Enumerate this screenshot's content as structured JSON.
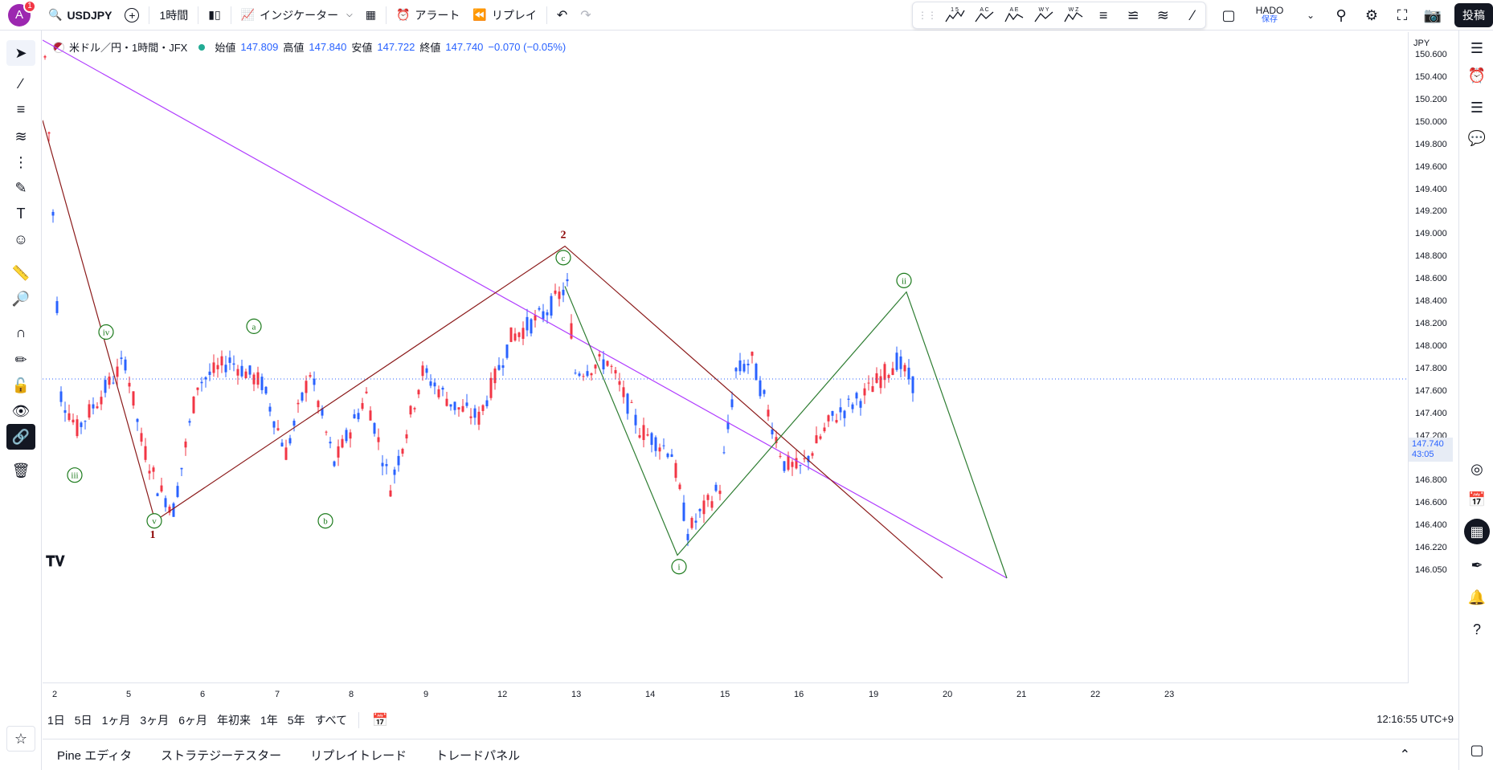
{
  "topbar": {
    "avatar_letter": "A",
    "notif_count": "1",
    "symbol": "USDJPY",
    "add_symbol": "+",
    "interval": "1時間",
    "indicators": "インジケーター",
    "alert": "アラート",
    "replay": "リプレイ",
    "undo": "↶",
    "redo": "↷",
    "layout_name": "HADO",
    "layout_sub": "保存",
    "post": "投稿",
    "elliott_tools": [
      "1 5",
      "A C",
      "A E",
      "W Y",
      "W Z"
    ]
  },
  "legend": {
    "title": "米ドル／円・1時間・JFX",
    "open_label": "始値",
    "open": "147.809",
    "high_label": "高値",
    "high": "147.840",
    "low_label": "安値",
    "low": "147.722",
    "close_label": "終値",
    "close": "147.740",
    "change": "−0.070 (−0.05%)"
  },
  "price_scale": {
    "currency": "JPY",
    "ticks": [
      "150.600",
      "150.400",
      "150.200",
      "150.000",
      "149.800",
      "149.600",
      "149.400",
      "149.200",
      "149.000",
      "148.800",
      "148.600",
      "148.400",
      "148.200",
      "148.000",
      "147.800",
      "147.600",
      "147.400",
      "147.200",
      "147.000",
      "146.800",
      "146.600",
      "146.400",
      "146.220",
      "146.050"
    ],
    "current_price": "147.740",
    "countdown": "43:05"
  },
  "time_axis": {
    "labels": [
      "2",
      "5",
      "6",
      "7",
      "8",
      "9",
      "12",
      "13",
      "14",
      "15",
      "16",
      "19",
      "20",
      "21",
      "22",
      "23"
    ]
  },
  "range_bar": {
    "ranges": [
      "1日",
      "5日",
      "1ヶ月",
      "3ヶ月",
      "6ヶ月",
      "年初来",
      "1年",
      "5年",
      "すべて"
    ],
    "clock": "12:16:55 UTC+9"
  },
  "panel_tabs": [
    "Pine エディタ",
    "ストラテジーテスター",
    "リプレイトレード",
    "トレードパネル"
  ],
  "chart_data": {
    "type": "candlestick",
    "symbol": "USDJPY",
    "interval": "1時間",
    "ylim": [
      146.0,
      150.7
    ],
    "x_labels": [
      "2",
      "5",
      "6",
      "7",
      "8",
      "9",
      "12",
      "13",
      "14",
      "15",
      "16",
      "19",
      "20",
      "21",
      "22",
      "23"
    ],
    "wave_labels": [
      {
        "text": "1",
        "color": "#8b0000"
      },
      {
        "text": "2",
        "color": "#8b0000"
      },
      {
        "text": "i",
        "color": "#1b7a1b"
      },
      {
        "text": "ii",
        "color": "#1b7a1b"
      },
      {
        "text": "iii",
        "color": "#1b7a1b"
      },
      {
        "text": "iv",
        "color": "#1b7a1b"
      },
      {
        "text": "v",
        "color": "#1b7a1b"
      },
      {
        "text": "a",
        "color": "#1b7a1b"
      },
      {
        "text": "b",
        "color": "#1b7a1b"
      },
      {
        "text": "c",
        "color": "#1b7a1b"
      }
    ],
    "accent_colors": {
      "up": "#f23645",
      "down": "#2962ff",
      "trendline": "#b03cff",
      "impulse": "#8b1a1a",
      "correction": "#2e7d32"
    }
  }
}
